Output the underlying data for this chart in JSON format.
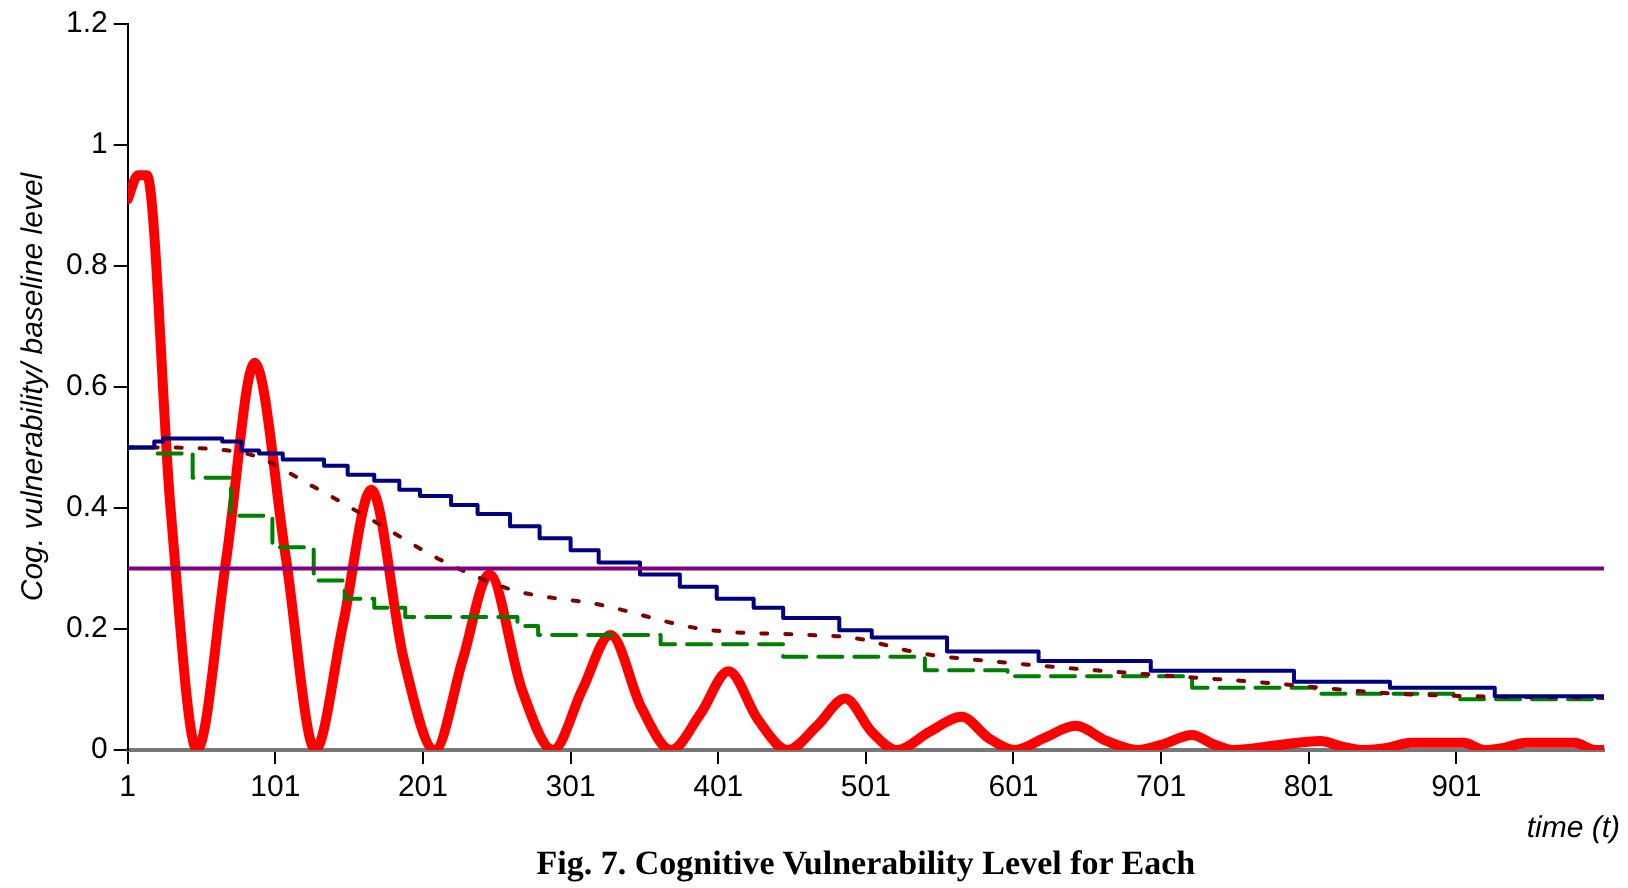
{
  "chart_data": {
    "type": "line",
    "ylabel": "Cog. vulnerability/ baseline level",
    "xlabel": "time (t)",
    "annotations": [
      "Fig. 7. Cognitive Vulnerability Level for Each"
    ],
    "xlim": [
      1,
      1001
    ],
    "xticks": [
      1,
      101,
      201,
      301,
      401,
      501,
      601,
      701,
      801,
      901
    ],
    "ylim": [
      0,
      1.2
    ],
    "yticks": [
      0,
      0.2,
      0.4,
      0.6,
      0.8,
      1,
      1.2
    ],
    "grid": false,
    "legend": false,
    "marker": "none",
    "series": [
      {
        "type": "line",
        "color": "#800080",
        "line_style": "solid",
        "x": [
          1,
          1001
        ],
        "values": [
          0.3,
          0.3
        ]
      },
      {
        "type": "step",
        "color": "#000080",
        "line_style": "solid",
        "x": [
          1,
          19,
          25,
          65,
          78,
          90,
          106,
          134,
          150,
          168,
          185,
          199,
          220,
          238,
          260,
          280,
          301,
          320,
          348,
          375,
          400,
          425,
          445,
          483,
          505,
          556,
          618,
          694,
          791,
          856,
          927,
          1001
        ],
        "values": [
          0.5,
          0.51,
          0.515,
          0.51,
          0.495,
          0.49,
          0.48,
          0.47,
          0.455,
          0.445,
          0.43,
          0.42,
          0.405,
          0.39,
          0.37,
          0.35,
          0.33,
          0.31,
          0.29,
          0.27,
          0.25,
          0.235,
          0.218,
          0.198,
          0.186,
          0.163,
          0.147,
          0.131,
          0.113,
          0.103,
          0.089,
          0.089
        ]
      },
      {
        "type": "line",
        "color": "#800000",
        "line_style": "dotted",
        "x": [
          1,
          20,
          81,
          127,
          168,
          214,
          261,
          321,
          390,
          463,
          491,
          538,
          598,
          676,
          768,
          861,
          1001
        ],
        "values": [
          0.5,
          0.5,
          0.49,
          0.435,
          0.378,
          0.313,
          0.265,
          0.24,
          0.2,
          0.19,
          0.186,
          0.16,
          0.144,
          0.128,
          0.112,
          0.093,
          0.086
        ]
      },
      {
        "type": "step",
        "color": "#008000",
        "line_style": "dashed",
        "x": [
          1,
          19,
          45,
          71,
          99,
          127,
          148,
          168,
          189,
          265,
          279,
          362,
          445,
          541,
          597,
          722,
          805,
          902,
          1001
        ],
        "values": [
          0.5,
          0.49,
          0.45,
          0.387,
          0.335,
          0.28,
          0.25,
          0.235,
          0.22,
          0.205,
          0.19,
          0.175,
          0.154,
          0.132,
          0.122,
          0.103,
          0.093,
          0.084,
          0.084
        ]
      },
      {
        "type": "line",
        "color": "#ff0000",
        "line_style": "solid",
        "x": [
          1,
          8,
          14,
          30,
          48,
          68,
          87,
          108,
          128,
          147,
          166,
          188,
          209,
          228,
          246,
          268,
          289,
          309,
          328,
          349,
          369,
          389,
          408,
          428,
          448,
          468,
          487,
          505,
          522,
          544,
          566,
          584,
          602,
          622,
          643,
          664,
          685,
          703,
          722,
          736,
          750,
          780,
          809,
          823,
          837,
          855,
          870,
          906,
          920,
          934,
          948,
          981,
          995,
          1001
        ],
        "values": [
          0.91,
          0.95,
          0.95,
          0.4,
          0,
          0.32,
          0.64,
          0.32,
          0,
          0.21,
          0.43,
          0.15,
          0,
          0.15,
          0.29,
          0.1,
          0,
          0.1,
          0.19,
          0.07,
          0,
          0.06,
          0.13,
          0.05,
          0,
          0.04,
          0.085,
          0.03,
          0,
          0.03,
          0.055,
          0.02,
          0,
          0.02,
          0.04,
          0.015,
          0,
          0.01,
          0.025,
          0.01,
          0,
          0.008,
          0.015,
          0.006,
          0,
          0.004,
          0.012,
          0.012,
          0,
          0.004,
          0.012,
          0.012,
          0,
          0
        ]
      }
    ]
  }
}
